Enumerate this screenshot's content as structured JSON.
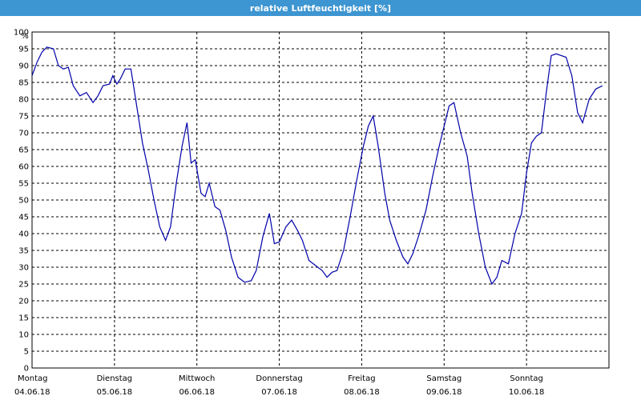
{
  "window": {
    "title": "relative Luftfeuchtigkeit [%]"
  },
  "colors": {
    "title_bar": "#3d95d1",
    "series": "#0000aa"
  },
  "chart_data": {
    "type": "line",
    "title": "relative Luftfeuchtigkeit [%]",
    "ylabel": "%",
    "xlabel": "",
    "ylim": [
      0,
      100
    ],
    "yticks": [
      0,
      5,
      10,
      15,
      20,
      25,
      30,
      35,
      40,
      45,
      50,
      55,
      60,
      65,
      70,
      75,
      80,
      85,
      90,
      95,
      100
    ],
    "xlim": [
      0,
      7
    ],
    "grid": true,
    "day_labels": [
      {
        "day": "Montag",
        "date": "04.06.18"
      },
      {
        "day": "Dienstag",
        "date": "05.06.18"
      },
      {
        "day": "Mittwoch",
        "date": "06.06.18"
      },
      {
        "day": "Donnerstag",
        "date": "07.06.18"
      },
      {
        "day": "Freitag",
        "date": "08.06.18"
      },
      {
        "day": "Samstag",
        "date": "09.06.18"
      },
      {
        "day": "Sonntag",
        "date": "10.06.18"
      }
    ],
    "series": [
      {
        "points": [
          [
            0.0,
            87
          ],
          [
            0.06,
            91
          ],
          [
            0.12,
            94
          ],
          [
            0.18,
            95.5
          ],
          [
            0.26,
            95
          ],
          [
            0.32,
            90
          ],
          [
            0.38,
            89
          ],
          [
            0.44,
            89.5
          ],
          [
            0.5,
            84
          ],
          [
            0.58,
            81
          ],
          [
            0.66,
            82
          ],
          [
            0.74,
            79
          ],
          [
            0.8,
            81
          ],
          [
            0.86,
            84
          ],
          [
            0.94,
            84.5
          ],
          [
            0.98,
            87
          ],
          [
            1.03,
            84.5
          ],
          [
            1.07,
            86
          ],
          [
            1.13,
            89
          ],
          [
            1.2,
            89
          ],
          [
            1.27,
            78
          ],
          [
            1.34,
            67
          ],
          [
            1.41,
            59
          ],
          [
            1.48,
            50
          ],
          [
            1.55,
            42
          ],
          [
            1.62,
            38
          ],
          [
            1.68,
            42
          ],
          [
            1.75,
            55
          ],
          [
            1.82,
            66
          ],
          [
            1.88,
            73
          ],
          [
            1.93,
            61
          ],
          [
            1.98,
            62
          ],
          [
            2.05,
            52
          ],
          [
            2.1,
            51
          ],
          [
            2.15,
            55
          ],
          [
            2.22,
            48
          ],
          [
            2.28,
            47
          ],
          [
            2.35,
            41
          ],
          [
            2.42,
            33
          ],
          [
            2.5,
            27
          ],
          [
            2.58,
            25.5
          ],
          [
            2.66,
            26
          ],
          [
            2.72,
            29
          ],
          [
            2.8,
            39
          ],
          [
            2.88,
            46
          ],
          [
            2.94,
            37
          ],
          [
            3.0,
            37.5
          ],
          [
            3.08,
            42
          ],
          [
            3.15,
            44
          ],
          [
            3.22,
            41
          ],
          [
            3.28,
            38
          ],
          [
            3.36,
            32
          ],
          [
            3.44,
            30.5
          ],
          [
            3.52,
            29
          ],
          [
            3.58,
            27
          ],
          [
            3.64,
            28.5
          ],
          [
            3.7,
            29
          ],
          [
            3.78,
            35
          ],
          [
            3.86,
            45
          ],
          [
            3.94,
            56
          ],
          [
            4.02,
            66
          ],
          [
            4.08,
            72
          ],
          [
            4.14,
            75
          ],
          [
            4.2,
            66
          ],
          [
            4.28,
            52
          ],
          [
            4.34,
            44
          ],
          [
            4.42,
            38
          ],
          [
            4.5,
            33
          ],
          [
            4.56,
            31
          ],
          [
            4.62,
            34
          ],
          [
            4.7,
            40
          ],
          [
            4.78,
            47
          ],
          [
            4.86,
            57
          ],
          [
            4.94,
            66
          ],
          [
            5.0,
            72
          ],
          [
            5.06,
            78
          ],
          [
            5.12,
            79
          ],
          [
            5.2,
            70
          ],
          [
            5.28,
            63
          ],
          [
            5.34,
            52
          ],
          [
            5.42,
            40
          ],
          [
            5.5,
            30
          ],
          [
            5.58,
            25
          ],
          [
            5.64,
            27
          ],
          [
            5.7,
            32
          ],
          [
            5.78,
            31
          ],
          [
            5.86,
            40
          ],
          [
            5.94,
            46
          ],
          [
            6.0,
            58
          ],
          [
            6.06,
            67
          ],
          [
            6.12,
            69
          ],
          [
            6.18,
            70
          ],
          [
            6.24,
            82
          ],
          [
            6.3,
            93
          ],
          [
            6.36,
            93.5
          ],
          [
            6.42,
            93
          ],
          [
            6.48,
            92.5
          ],
          [
            6.55,
            87
          ],
          [
            6.62,
            76
          ],
          [
            6.68,
            73
          ],
          [
            6.76,
            80
          ],
          [
            6.84,
            83
          ],
          [
            6.92,
            84
          ]
        ]
      }
    ]
  }
}
